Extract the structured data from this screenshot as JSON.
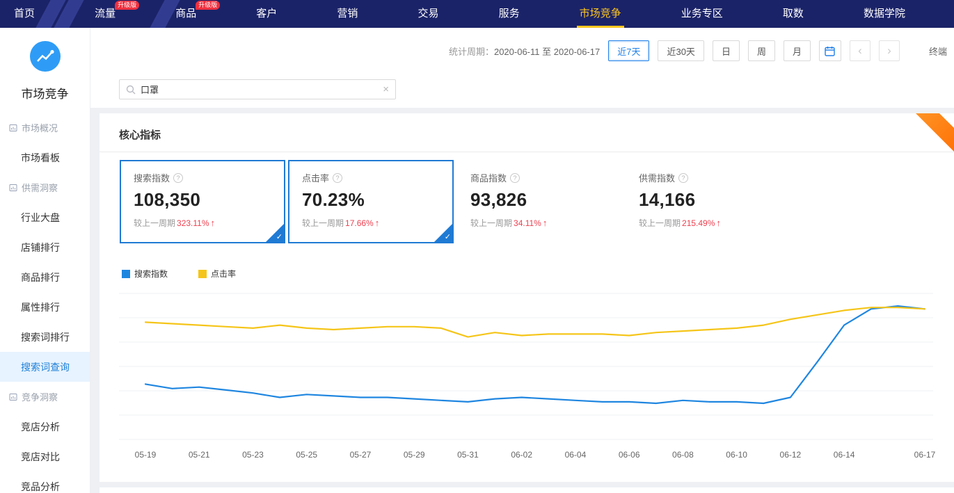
{
  "nav": {
    "items": [
      {
        "label": "首页"
      },
      {
        "label": "流量",
        "badge": "升级版"
      },
      {
        "label": "商品",
        "badge": "升级版"
      },
      {
        "label": "客户"
      },
      {
        "label": "营销"
      },
      {
        "label": "交易"
      },
      {
        "label": "服务"
      },
      {
        "label": "市场竞争",
        "active": true
      },
      {
        "label": "业务专区"
      },
      {
        "label": "取数"
      },
      {
        "label": "数据学院"
      }
    ]
  },
  "sidebar": {
    "title": "市场竞争",
    "items": [
      {
        "label": "市场概况",
        "type": "group"
      },
      {
        "label": "市场看板",
        "type": "item"
      },
      {
        "label": "供需洞察",
        "type": "group"
      },
      {
        "label": "行业大盘",
        "type": "item"
      },
      {
        "label": "店铺排行",
        "type": "item"
      },
      {
        "label": "商品排行",
        "type": "item"
      },
      {
        "label": "属性排行",
        "type": "item"
      },
      {
        "label": "搜索词排行",
        "type": "item"
      },
      {
        "label": "搜索词查询",
        "type": "item",
        "active": true
      },
      {
        "label": "竞争洞察",
        "type": "group"
      },
      {
        "label": "竞店分析",
        "type": "item"
      },
      {
        "label": "竞店对比",
        "type": "item"
      },
      {
        "label": "竞品分析",
        "type": "item"
      }
    ]
  },
  "toolbar": {
    "period_label": "统计周期：",
    "period_value": "2020-06-11 至 2020-06-17",
    "range_buttons": [
      "近7天",
      "近30天",
      "日",
      "周",
      "月"
    ],
    "active_range": "近7天",
    "terminal_label": "终端"
  },
  "search": {
    "value": "口罩"
  },
  "icons": {
    "help": "?",
    "up_arrow": "↑",
    "check": "✓",
    "prev": "‹",
    "next": "›",
    "clear": "×"
  },
  "core": {
    "title": "核心指标",
    "metrics": [
      {
        "label": "搜索指数",
        "value": "108,350",
        "change_prefix": "较上一周期",
        "change": "323.11%",
        "selected": true
      },
      {
        "label": "点击率",
        "value": "70.23%",
        "change_prefix": "较上一周期",
        "change": "17.66%",
        "selected": true
      },
      {
        "label": "商品指数",
        "value": "93,826",
        "change_prefix": "较上一周期",
        "change": "34.11%",
        "selected": false
      },
      {
        "label": "供需指数",
        "value": "14,166",
        "change_prefix": "较上一周期",
        "change": "215.49%",
        "selected": false
      }
    ]
  },
  "colors": {
    "accent_blue": "#1f7ad4",
    "nav_bg": "#1b2368",
    "active_tab_yellow": "#ffc71e",
    "badge_red": "#f0303f",
    "change_red": "#ed3f4e"
  },
  "chart_data": {
    "type": "line",
    "title": "",
    "legend": [
      "搜索指数",
      "点击率"
    ],
    "legend_position": "top-left",
    "grid": true,
    "ylim": [
      0,
      100
    ],
    "x": [
      "05-19",
      "05-20",
      "05-21",
      "05-22",
      "05-23",
      "05-24",
      "05-25",
      "05-26",
      "05-27",
      "05-28",
      "05-29",
      "05-30",
      "05-31",
      "06-01",
      "06-02",
      "06-03",
      "06-04",
      "06-05",
      "06-06",
      "06-07",
      "06-08",
      "06-09",
      "06-10",
      "06-11",
      "06-12",
      "06-13",
      "06-14",
      "06-15",
      "06-16",
      "06-17"
    ],
    "x_tick_labels": [
      "05-19",
      "05-21",
      "05-23",
      "05-25",
      "05-27",
      "05-29",
      "05-31",
      "06-02",
      "06-04",
      "06-06",
      "06-08",
      "06-10",
      "06-12",
      "06-14",
      "06-17"
    ],
    "series": [
      {
        "name": "搜索指数",
        "color": "#1f86e0",
        "values": [
          38,
          35,
          36,
          34,
          32,
          29,
          31,
          30,
          29,
          29,
          28,
          27,
          26,
          28,
          29,
          28,
          27,
          26,
          26,
          25,
          27,
          26,
          26,
          25,
          29,
          53,
          78,
          89,
          91,
          89
        ]
      },
      {
        "name": "点击率",
        "color": "#f5c519",
        "values": [
          80,
          79,
          78,
          77,
          76,
          78,
          76,
          75,
          76,
          77,
          77,
          76,
          70,
          73,
          71,
          72,
          72,
          72,
          71,
          73,
          74,
          75,
          76,
          78,
          82,
          85,
          88,
          90,
          90,
          89
        ]
      }
    ]
  }
}
